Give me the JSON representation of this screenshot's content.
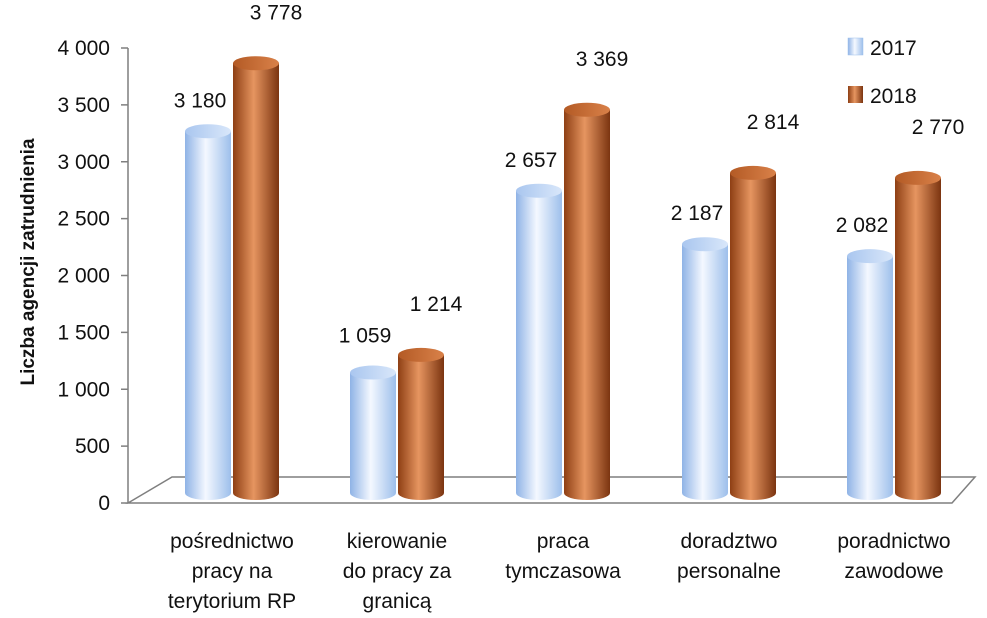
{
  "chart_data": {
    "type": "bar",
    "ylabel": "Liczba agencji zatrudnienia",
    "ylim": [
      0,
      4000
    ],
    "yticks": [
      0,
      500,
      1000,
      1500,
      2000,
      2500,
      3000,
      3500,
      4000
    ],
    "ytick_labels": [
      "0",
      "500",
      "1 000",
      "1 500",
      "2 000",
      "2 500",
      "3 000",
      "3 500",
      "4 000"
    ],
    "categories": [
      [
        "pośrednictwo",
        "pracy na",
        "terytorium RP"
      ],
      [
        "kierowanie",
        "do pracy za",
        "granicą"
      ],
      [
        "praca",
        "tymczasowa"
      ],
      [
        "doradztwo",
        "personalne"
      ],
      [
        "poradnictwo",
        "zawodowe"
      ]
    ],
    "series": [
      {
        "name": "2017",
        "values": [
          3180,
          1059,
          2657,
          2187,
          2082
        ],
        "labels": [
          "3 180",
          "1 059",
          "2 657",
          "2 187",
          "2 082"
        ],
        "color": "#b9d4f6"
      },
      {
        "name": "2018",
        "values": [
          3778,
          1214,
          3369,
          2814,
          2770
        ],
        "labels": [
          "3 778",
          "1 214",
          "3 369",
          "2 814",
          "2 770"
        ],
        "color": "#b8622b"
      }
    ],
    "legend_position": "top-right",
    "grid": false
  }
}
